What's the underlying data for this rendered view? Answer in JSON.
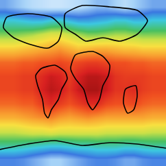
{
  "chart_data": {
    "type": "heatmap",
    "tick_labels": false,
    "xlim": [
      -180,
      180
    ],
    "ylim": [
      -90,
      90
    ],
    "zlim": [
      -30,
      35
    ],
    "x": [
      -170,
      -150,
      -130,
      -110,
      -90,
      -70,
      -50,
      -30,
      -10,
      10,
      30,
      50,
      70,
      90,
      110,
      130,
      150,
      170
    ],
    "y": [
      82.5,
      67.5,
      52.5,
      37.5,
      22.5,
      7.5,
      -7.5,
      -22.5,
      -37.5,
      -52.5,
      -67.5,
      -82.5
    ],
    "z": [
      [
        -18,
        -20,
        -22,
        -24,
        -25,
        -26,
        -26,
        -25,
        -24,
        -22,
        -20,
        -20,
        -22,
        -24,
        -22,
        -20,
        -18,
        -18
      ],
      [
        -6,
        -6,
        -7,
        -8,
        -8,
        -6,
        -5,
        -8,
        -10,
        -10,
        -9,
        -8,
        -6,
        -6,
        -8,
        -8,
        -6,
        -6
      ],
      [
        4,
        4,
        5,
        6,
        8,
        10,
        10,
        8,
        6,
        4,
        4,
        5,
        6,
        6,
        5,
        4,
        4,
        4
      ],
      [
        15,
        15,
        16,
        17,
        18,
        19,
        20,
        18,
        16,
        17,
        18,
        18,
        17,
        16,
        16,
        15,
        15,
        15
      ],
      [
        24,
        24,
        25,
        25,
        26,
        26,
        27,
        26,
        27,
        28,
        28,
        27,
        26,
        26,
        25,
        25,
        24,
        24
      ],
      [
        27,
        27,
        28,
        28,
        30,
        32,
        31,
        28,
        31,
        33,
        33,
        32,
        29,
        28,
        28,
        28,
        27,
        27
      ],
      [
        27,
        27,
        28,
        28,
        31,
        33,
        32,
        29,
        32,
        34,
        34,
        32,
        29,
        29,
        30,
        28,
        27,
        27
      ],
      [
        24,
        24,
        25,
        25,
        28,
        30,
        28,
        26,
        28,
        30,
        30,
        27,
        26,
        26,
        27,
        25,
        24,
        24
      ],
      [
        18,
        18,
        19,
        20,
        21,
        22,
        20,
        19,
        20,
        21,
        20,
        19,
        19,
        19,
        19,
        19,
        18,
        18
      ],
      [
        8,
        8,
        9,
        10,
        10,
        11,
        10,
        10,
        10,
        10,
        10,
        9,
        9,
        9,
        9,
        9,
        8,
        8
      ],
      [
        -2,
        -2,
        -3,
        -4,
        -5,
        -6,
        -6,
        -5,
        -4,
        -4,
        -3,
        -3,
        -3,
        -4,
        -4,
        -3,
        -2,
        -2
      ],
      [
        -15,
        -15,
        -16,
        -18,
        -20,
        -22,
        -22,
        -20,
        -18,
        -16,
        -15,
        -15,
        -16,
        -18,
        -18,
        -16,
        -15,
        -15
      ]
    ],
    "coastlines": [
      {
        "lon": [
          -90.7,
          -61,
          -38.7,
          -34.2,
          -46.1,
          -53.6,
          -68.4,
          -75.9,
          -83.3,
          -87.8,
          -98.2,
          -102.6,
          -90.7
        ],
        "lat": [
          15.6,
          19.3,
          11.9,
          4.5,
          -6.7,
          -17.9,
          -29,
          -37.9,
          -32.7,
          -17.9,
          -3,
          8.2,
          15.6
        ]
      },
      {
        "lon": [
          -16.4,
          20.8,
          43.1,
          58,
          55,
          43.1,
          35.7,
          20.8,
          10.4,
          1.5,
          -16.4,
          -26.8,
          -16.4
        ],
        "lat": [
          30.5,
          34.2,
          29,
          19.3,
          8.2,
          -3,
          -17.9,
          -29,
          -21.6,
          -6.7,
          4.5,
          15.6,
          30.5
        ]
      },
      {
        "lon": [
          92.2,
          114.5,
          117.5,
          110,
          96.7,
          87.8,
          92.2
        ],
        "lat": [
          -6.7,
          -3,
          -14.1,
          -29,
          -32.7,
          -21.6,
          -6.7
        ]
      },
      {
        "lon": [
          -38.7,
          -1.5,
          58,
          117.5,
          139.8,
          117.5,
          80.3,
          43.1,
          5.9,
          -16.4,
          -38.7,
          -38.7
        ],
        "lat": [
          75.1,
          84,
          82.6,
          78.8,
          67.7,
          52.8,
          45.4,
          49.1,
          45.4,
          52.8,
          60.2,
          75.1
        ]
      },
      {
        "lon": [
          -165.1,
          -120.5,
          -68.4,
          -46.1,
          -53.6,
          -75.9,
          -113.1,
          -150.2,
          -172.6,
          -165.1
        ],
        "lat": [
          71.4,
          75.1,
          71.4,
          60.2,
          45.4,
          37.9,
          41.7,
          49.1,
          60.2,
          71.4
        ]
      },
      {
        "lon": [
          -180,
          -120.5,
          -61,
          -1.5,
          58,
          117.5,
          180
        ],
        "lat": [
          -72.1,
          -66.2,
          -62.5,
          -67.7,
          -64.7,
          -66.2,
          -70.7
        ]
      }
    ]
  }
}
